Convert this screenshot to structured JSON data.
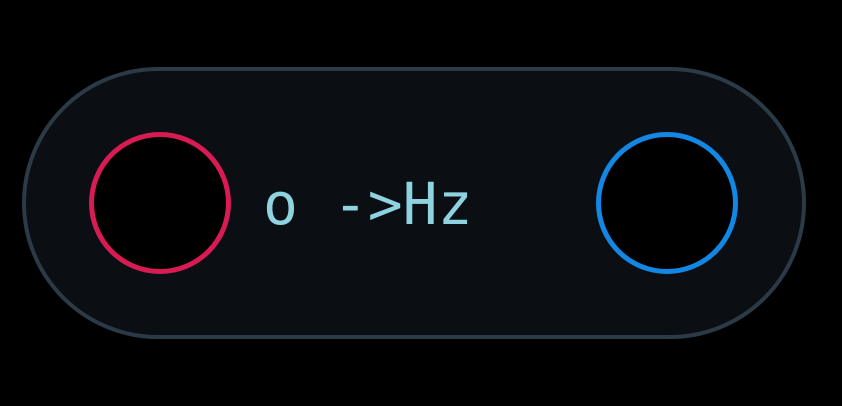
{
  "node": {
    "label": "o ->Hz",
    "colors": {
      "background": "#0b0f14",
      "border": "#2b3a47",
      "label": "#8fd3e0",
      "input_port": "#d81b53",
      "output_port": "#1287e4"
    }
  }
}
